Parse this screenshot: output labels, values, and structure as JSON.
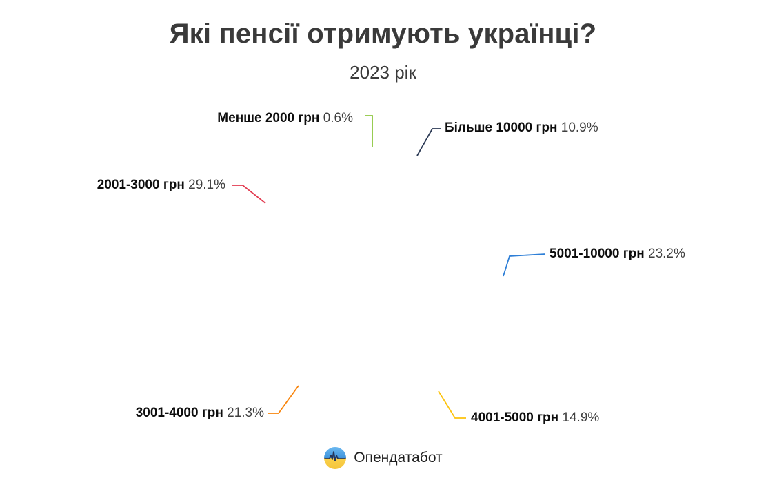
{
  "chart_data": {
    "type": "pie",
    "donut": true,
    "title": "Які пенсії отримують українці?",
    "subtitle": "2023 рік",
    "value_suffix": "%",
    "legend": "callout-labels",
    "segments": [
      {
        "label": "Менше 2000 грн",
        "value_pct": 0.6,
        "pct_text": "0.6%",
        "color": "#8DC63F"
      },
      {
        "label": "Більше 10000 грн",
        "value_pct": 10.9,
        "pct_text": "10.9%",
        "color": "#2C3A55"
      },
      {
        "label": "5001-10000 грн",
        "value_pct": 23.2,
        "pct_text": "23.2%",
        "color": "#2E7FD7"
      },
      {
        "label": "4001-5000 грн",
        "value_pct": 14.9,
        "pct_text": "14.9%",
        "color": "#FDC30D"
      },
      {
        "label": "3001-4000 грн",
        "value_pct": 21.3,
        "pct_text": "21.3%",
        "color": "#F8850D"
      },
      {
        "label": "2001-3000 грн",
        "value_pct": 29.1,
        "pct_text": "29.1%",
        "color": "#E23B50"
      }
    ]
  },
  "footer": {
    "brand": "Опендатабот"
  }
}
